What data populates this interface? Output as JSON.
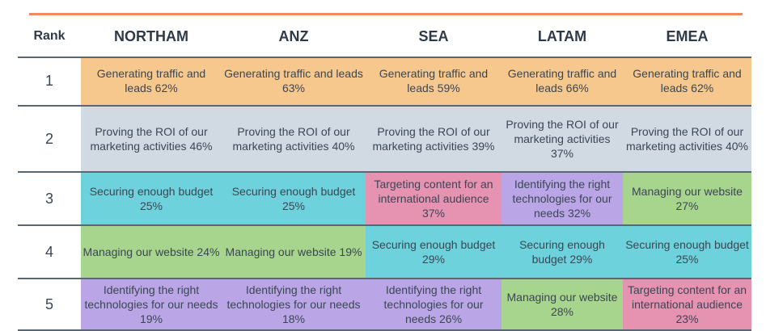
{
  "chart_data": {
    "type": "table",
    "title": "",
    "columns": [
      "Rank",
      "NORTHAM",
      "ANZ",
      "SEA",
      "LATAM",
      "EMEA"
    ],
    "rows": [
      {
        "rank": "1",
        "northam": "Generating traffic and leads 62%",
        "anz": "Generating traffic and leads 63%",
        "sea": "Generating traffic and leads 59%",
        "latam": "Generating traffic and leads 66%",
        "emea": "Generating traffic and leads 62%"
      },
      {
        "rank": "2",
        "northam": "Proving the ROI of our marketing activities 46%",
        "anz": "Proving the ROI of our marketing activities 40%",
        "sea": "Proving the ROI of our marketing activities 39%",
        "latam": "Proving the ROI of our marketing activities 37%",
        "emea": "Proving the ROI of our marketing activities 40%"
      },
      {
        "rank": "3",
        "northam": "Securing enough budget 25%",
        "anz": "Securing enough budget 25%",
        "sea": "Targeting content for an international audience 37%",
        "latam": "Identifying the right technologies for our needs 32%",
        "emea": "Managing our website 27%"
      },
      {
        "rank": "4",
        "northam": "Managing our website 24%",
        "anz": "Managing our website 19%",
        "sea": "Securing enough budget 29%",
        "latam": "Securing enough budget 29%",
        "emea": "Securing enough budget 25%"
      },
      {
        "rank": "5",
        "northam": "Identifying the right technologies for our needs 19%",
        "anz": "Identifying the right technologies for our needs 18%",
        "sea": "Identifying the right technologies for our needs 26%",
        "latam": "Managing our website 28%",
        "emea": "Targeting content for an international audience 23%"
      }
    ],
    "category_colors": {
      "traffic": "#f6c88d",
      "roi": "#d1d9e3",
      "budget": "#6dd2db",
      "website": "#a7d58d",
      "tech": "#baa6e6",
      "intl": "#e593b1"
    },
    "accent_rule_color": "#ef8a5b"
  }
}
